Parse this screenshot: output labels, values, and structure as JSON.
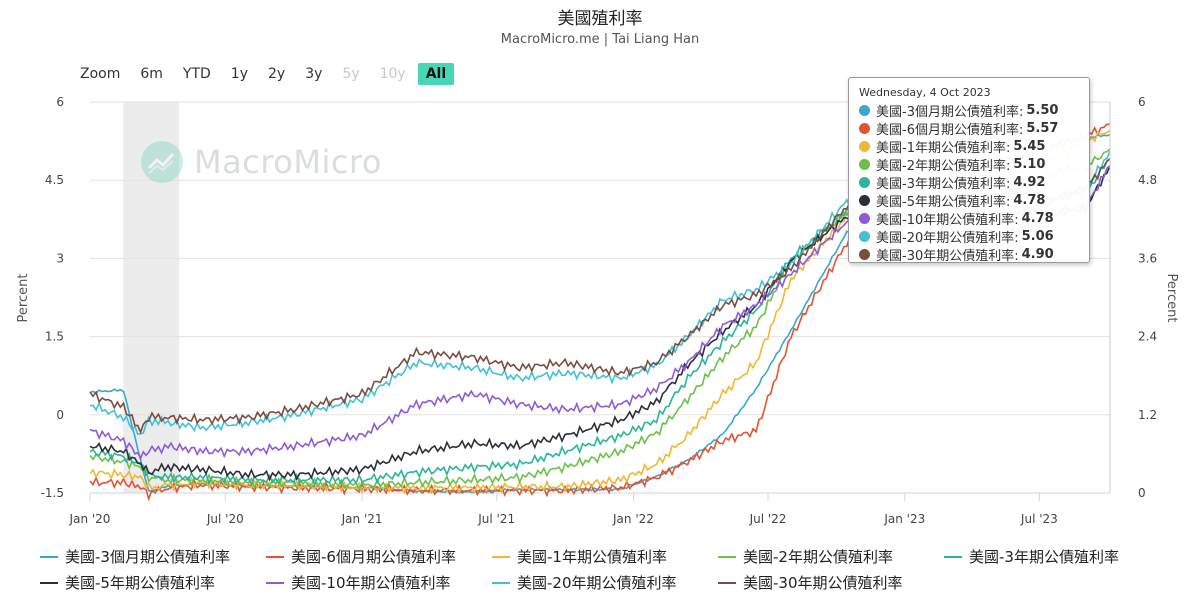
{
  "title": "美國殖利率",
  "subtitle": "MacroMicro.me | Tai Liang Han",
  "watermark": "MacroMicro",
  "zoom": {
    "label": "Zoom",
    "buttons": [
      {
        "label": "6m",
        "state": "normal"
      },
      {
        "label": "YTD",
        "state": "normal"
      },
      {
        "label": "1y",
        "state": "normal"
      },
      {
        "label": "2y",
        "state": "normal"
      },
      {
        "label": "3y",
        "state": "normal"
      },
      {
        "label": "5y",
        "state": "disabled"
      },
      {
        "label": "10y",
        "state": "disabled"
      },
      {
        "label": "All",
        "state": "active"
      }
    ]
  },
  "tooltip": {
    "date": "Wednesday, 4 Oct 2023",
    "rows": [
      {
        "label": "美國-3個月期公債殖利率:",
        "value": "5.50",
        "color": "#3aa7cf"
      },
      {
        "label": "美國-6個月期公債殖利率:",
        "value": "5.57",
        "color": "#e4532f"
      },
      {
        "label": "美國-1年期公債殖利率:",
        "value": "5.45",
        "color": "#f2b632"
      },
      {
        "label": "美國-2年期公債殖利率:",
        "value": "5.10",
        "color": "#6cc04a"
      },
      {
        "label": "美國-3年期公債殖利率:",
        "value": "4.92",
        "color": "#2bb598"
      },
      {
        "label": "美國-5年期公債殖利率:",
        "value": "4.78",
        "color": "#2b2f3a"
      },
      {
        "label": "美國-10年期公債殖利率:",
        "value": "4.78",
        "color": "#8e5bd8"
      },
      {
        "label": "美國-20年期公債殖利率:",
        "value": "5.06",
        "color": "#42c0d6"
      },
      {
        "label": "美國-30年期公債殖利率:",
        "value": "4.90",
        "color": "#7a4e3f"
      }
    ]
  },
  "chart_data": {
    "type": "line",
    "title": "美國殖利率",
    "subtitle": "MacroMicro.me | Tai Liang Han",
    "ylabel": "Percent",
    "ylabel_right": "Percent",
    "ylim_left": [
      -1.5,
      6
    ],
    "yticks_left": [
      "6",
      "4.5",
      "3",
      "1.5",
      "0",
      "-1.5"
    ],
    "ylim_right": [
      0,
      6
    ],
    "yticks_right": [
      "6",
      "4.8",
      "3.6",
      "2.4",
      "1.2",
      "0"
    ],
    "xticks": [
      "Jan '20",
      "Jul '20",
      "Jan '21",
      "Jul '21",
      "Jan '22",
      "Jul '22",
      "Jan '23",
      "Jul '23"
    ],
    "x_range": [
      "2020-01-01",
      "2023-10-04"
    ],
    "x_dates": [
      "2020-01-01",
      "2020-02-15",
      "2020-03-09",
      "2020-03-20",
      "2020-04-15",
      "2020-06-01",
      "2020-08-01",
      "2020-10-01",
      "2021-01-01",
      "2021-03-15",
      "2021-06-01",
      "2021-08-01",
      "2021-10-01",
      "2021-12-15",
      "2022-02-01",
      "2022-03-15",
      "2022-05-01",
      "2022-06-15",
      "2022-08-01",
      "2022-10-15",
      "2022-12-15",
      "2023-02-01",
      "2023-03-15",
      "2023-05-01",
      "2023-06-15",
      "2023-08-01",
      "2023-09-01",
      "2023-10-04"
    ],
    "shaded_region": {
      "from": "2020-02-15",
      "to": "2020-04-30"
    },
    "legend_position": "bottom",
    "grid": true,
    "series": [
      {
        "name": "美國-3個月期公債殖利率",
        "axis": "right",
        "color": "#3aa7cf",
        "values": [
          1.55,
          1.58,
          0.5,
          0.02,
          0.1,
          0.14,
          0.1,
          0.1,
          0.08,
          0.03,
          0.02,
          0.05,
          0.05,
          0.06,
          0.25,
          0.5,
          0.9,
          1.6,
          2.5,
          4.0,
          4.3,
          4.65,
          4.75,
          5.1,
          5.2,
          5.4,
          5.45,
          5.5
        ]
      },
      {
        "name": "美國-6個月期公債殖利率",
        "axis": "left",
        "color": "#e4532f",
        "values": [
          -1.3,
          -1.3,
          -1.38,
          -1.52,
          -1.4,
          -1.35,
          -1.38,
          -1.4,
          -1.42,
          -1.45,
          -1.45,
          -1.45,
          -1.45,
          -1.4,
          -1.2,
          -0.9,
          -0.5,
          -0.3,
          1.5,
          3.3,
          3.8,
          4.2,
          4.4,
          4.8,
          4.95,
          5.2,
          5.35,
          5.57
        ]
      },
      {
        "name": "美國-1年期公債殖利率",
        "axis": "left",
        "color": "#f2b632",
        "values": [
          -1.1,
          -1.15,
          -1.2,
          -1.4,
          -1.35,
          -1.3,
          -1.35,
          -1.35,
          -1.4,
          -1.4,
          -1.4,
          -1.38,
          -1.38,
          -1.25,
          -0.95,
          -0.4,
          0.4,
          1.0,
          2.6,
          3.8,
          4.2,
          4.4,
          4.45,
          4.55,
          4.7,
          5.0,
          5.25,
          5.45
        ]
      },
      {
        "name": "美國-2年期公債殖利率",
        "axis": "left",
        "color": "#6cc04a",
        "values": [
          -0.8,
          -0.9,
          -1.0,
          -1.2,
          -1.25,
          -1.25,
          -1.3,
          -1.3,
          -1.35,
          -1.3,
          -1.25,
          -1.2,
          -1.0,
          -0.7,
          -0.35,
          0.3,
          1.1,
          1.7,
          2.95,
          3.9,
          4.0,
          4.2,
          4.0,
          4.1,
          4.4,
          4.7,
          4.75,
          5.1
        ]
      },
      {
        "name": "美國-3年期公債殖利率",
        "axis": "left",
        "color": "#2bb598",
        "values": [
          -0.7,
          -0.8,
          -0.95,
          -1.15,
          -1.2,
          -1.2,
          -1.25,
          -1.25,
          -1.25,
          -1.1,
          -1.0,
          -0.95,
          -0.7,
          -0.4,
          -0.1,
          0.7,
          1.4,
          2.0,
          3.0,
          3.9,
          3.7,
          3.9,
          3.6,
          3.7,
          3.9,
          4.2,
          4.25,
          4.92
        ]
      },
      {
        "name": "美國-5年期公債殖利率",
        "axis": "left",
        "color": "#2b2f3a",
        "values": [
          -0.6,
          -0.7,
          -0.95,
          -1.1,
          -1.0,
          -1.05,
          -1.15,
          -1.15,
          -1.05,
          -0.7,
          -0.55,
          -0.6,
          -0.4,
          -0.1,
          0.25,
          0.95,
          1.6,
          2.1,
          2.95,
          3.8,
          3.6,
          3.7,
          3.5,
          3.4,
          3.6,
          3.9,
          3.95,
          4.78
        ]
      },
      {
        "name": "美國-10年期公債殖利率",
        "axis": "left",
        "color": "#8e5bd8",
        "values": [
          -0.3,
          -0.5,
          -0.8,
          -0.7,
          -0.6,
          -0.7,
          -0.7,
          -0.6,
          -0.4,
          0.2,
          0.4,
          0.2,
          0.1,
          0.2,
          0.5,
          1.0,
          1.7,
          2.1,
          2.7,
          3.7,
          3.4,
          3.5,
          3.35,
          3.35,
          3.6,
          3.9,
          4.0,
          4.78
        ]
      },
      {
        "name": "美國-20年期公債殖利率",
        "axis": "left",
        "color": "#42c0d6",
        "values": [
          0.2,
          -0.05,
          -0.4,
          -0.1,
          -0.15,
          -0.25,
          -0.15,
          0.0,
          0.3,
          1.0,
          0.9,
          0.7,
          0.8,
          0.7,
          0.95,
          1.5,
          2.2,
          2.4,
          2.9,
          4.1,
          3.75,
          3.9,
          3.8,
          3.75,
          3.9,
          4.2,
          4.3,
          5.06
        ]
      },
      {
        "name": "美國-30年期公債殖利率",
        "axis": "left",
        "color": "#7a4e3f",
        "values": [
          0.4,
          0.15,
          -0.3,
          -0.05,
          -0.05,
          -0.1,
          -0.05,
          0.1,
          0.4,
          1.2,
          1.1,
          0.9,
          1.0,
          0.8,
          1.0,
          1.5,
          2.1,
          2.3,
          2.8,
          4.0,
          3.65,
          3.8,
          3.75,
          3.75,
          3.85,
          4.2,
          4.35,
          4.9
        ]
      }
    ]
  }
}
